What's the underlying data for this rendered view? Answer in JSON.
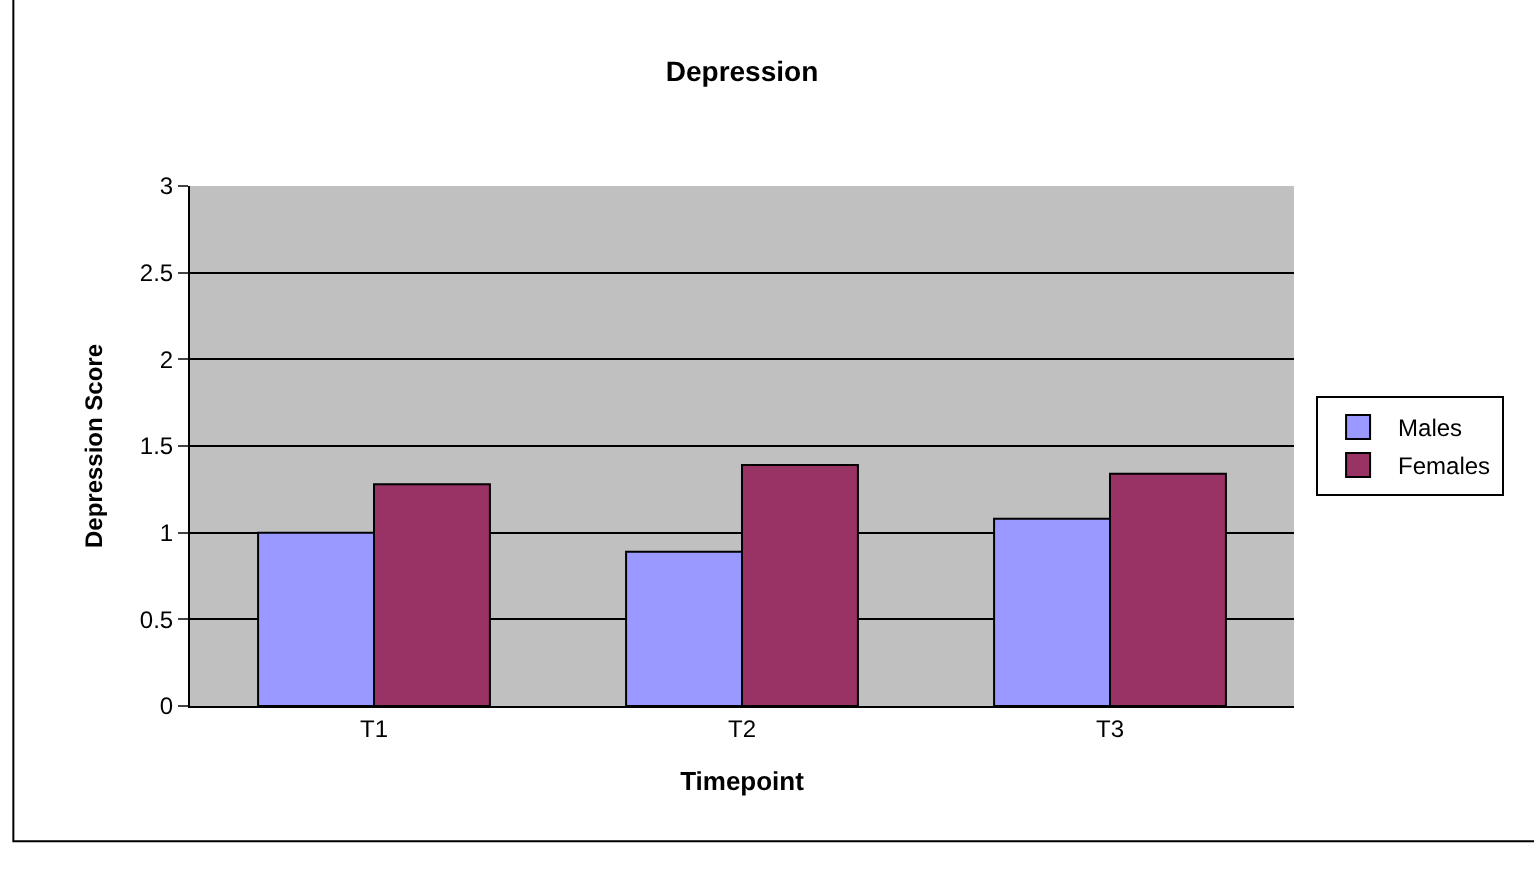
{
  "chart_data": {
    "type": "bar",
    "title": "Depression",
    "xlabel": "Timepoint",
    "ylabel": "Depression Score",
    "categories": [
      "T1",
      "T2",
      "T3"
    ],
    "series": [
      {
        "name": "Males",
        "color": "#9999ff",
        "values": [
          1.0,
          0.89,
          1.08
        ]
      },
      {
        "name": "Females",
        "color": "#993366",
        "values": [
          1.28,
          1.39,
          1.34
        ]
      }
    ],
    "ylim": [
      0,
      3
    ],
    "yticks": [
      0,
      0.5,
      1,
      1.5,
      2,
      2.5,
      3
    ],
    "grid": "y",
    "legend": "right"
  }
}
